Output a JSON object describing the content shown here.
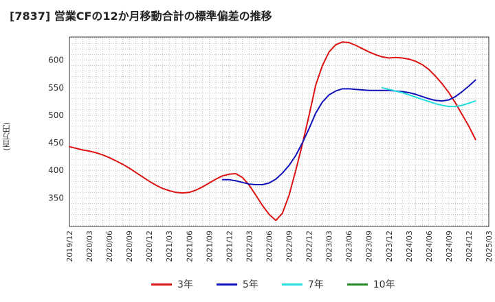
{
  "chart_data": {
    "type": "line",
    "title": "[7837]  営業CFの12か月移動合計の標準偏差の推移",
    "ylabel": "(百万円)",
    "xlabel": "",
    "ylim": [
      298,
      642
    ],
    "yticks": [
      350,
      400,
      450,
      500,
      550,
      600
    ],
    "x_ticks": [
      "2019/12",
      "2020/03",
      "2020/06",
      "2020/09",
      "2020/12",
      "2021/03",
      "2021/06",
      "2021/09",
      "2021/12",
      "2022/03",
      "2022/06",
      "2022/09",
      "2022/12",
      "2023/03",
      "2023/06",
      "2023/09",
      "2023/12",
      "2024/03",
      "2024/06",
      "2024/09",
      "2024/12",
      "2025/03"
    ],
    "grid": true,
    "legend_position": "bottom",
    "series": [
      {
        "name": "3年",
        "color": "#dd1111",
        "points": [
          [
            "2019/12",
            443
          ],
          [
            "2020/01",
            440
          ],
          [
            "2020/02",
            437
          ],
          [
            "2020/03",
            435
          ],
          [
            "2020/04",
            432
          ],
          [
            "2020/05",
            428
          ],
          [
            "2020/06",
            423
          ],
          [
            "2020/07",
            417
          ],
          [
            "2020/08",
            411
          ],
          [
            "2020/09",
            404
          ],
          [
            "2020/10",
            396
          ],
          [
            "2020/11",
            388
          ],
          [
            "2020/12",
            380
          ],
          [
            "2021/01",
            373
          ],
          [
            "2021/02",
            367
          ],
          [
            "2021/03",
            363
          ],
          [
            "2021/04",
            360
          ],
          [
            "2021/05",
            359
          ],
          [
            "2021/06",
            360
          ],
          [
            "2021/07",
            364
          ],
          [
            "2021/08",
            370
          ],
          [
            "2021/09",
            377
          ],
          [
            "2021/10",
            384
          ],
          [
            "2021/11",
            390
          ],
          [
            "2021/12",
            393
          ],
          [
            "2022/01",
            394
          ],
          [
            "2022/02",
            387
          ],
          [
            "2022/03",
            373
          ],
          [
            "2022/04",
            355
          ],
          [
            "2022/05",
            336
          ],
          [
            "2022/06",
            320
          ],
          [
            "2022/07",
            309
          ],
          [
            "2022/08",
            322
          ],
          [
            "2022/09",
            355
          ],
          [
            "2022/10",
            400
          ],
          [
            "2022/11",
            448
          ],
          [
            "2022/12",
            500
          ],
          [
            "2023/01",
            555
          ],
          [
            "2023/02",
            590
          ],
          [
            "2023/03",
            615
          ],
          [
            "2023/04",
            628
          ],
          [
            "2023/05",
            633
          ],
          [
            "2023/06",
            632
          ],
          [
            "2023/07",
            627
          ],
          [
            "2023/08",
            621
          ],
          [
            "2023/09",
            615
          ],
          [
            "2023/10",
            610
          ],
          [
            "2023/11",
            606
          ],
          [
            "2023/12",
            604
          ],
          [
            "2024/01",
            605
          ],
          [
            "2024/02",
            604
          ],
          [
            "2024/03",
            602
          ],
          [
            "2024/04",
            598
          ],
          [
            "2024/05",
            592
          ],
          [
            "2024/06",
            583
          ],
          [
            "2024/07",
            571
          ],
          [
            "2024/08",
            557
          ],
          [
            "2024/09",
            541
          ],
          [
            "2024/10",
            522
          ],
          [
            "2024/11",
            501
          ],
          [
            "2024/12",
            480
          ],
          [
            "2025/01",
            456
          ]
        ]
      },
      {
        "name": "5年",
        "color": "#1111bb",
        "points": [
          [
            "2021/11",
            383
          ],
          [
            "2021/12",
            383
          ],
          [
            "2022/01",
            381
          ],
          [
            "2022/02",
            378
          ],
          [
            "2022/03",
            375
          ],
          [
            "2022/04",
            374
          ],
          [
            "2022/05",
            374
          ],
          [
            "2022/06",
            377
          ],
          [
            "2022/07",
            384
          ],
          [
            "2022/08",
            395
          ],
          [
            "2022/09",
            409
          ],
          [
            "2022/10",
            427
          ],
          [
            "2022/11",
            450
          ],
          [
            "2022/12",
            476
          ],
          [
            "2023/01",
            504
          ],
          [
            "2023/02",
            524
          ],
          [
            "2023/03",
            537
          ],
          [
            "2023/04",
            544
          ],
          [
            "2023/05",
            548
          ],
          [
            "2023/06",
            548
          ],
          [
            "2023/07",
            547
          ],
          [
            "2023/08",
            546
          ],
          [
            "2023/09",
            545
          ],
          [
            "2023/10",
            545
          ],
          [
            "2023/11",
            545
          ],
          [
            "2023/12",
            545
          ],
          [
            "2024/01",
            544
          ],
          [
            "2024/02",
            543
          ],
          [
            "2024/03",
            541
          ],
          [
            "2024/04",
            538
          ],
          [
            "2024/05",
            534
          ],
          [
            "2024/06",
            530
          ],
          [
            "2024/07",
            527
          ],
          [
            "2024/08",
            526
          ],
          [
            "2024/09",
            528
          ],
          [
            "2024/10",
            534
          ],
          [
            "2024/11",
            543
          ],
          [
            "2024/12",
            553
          ],
          [
            "2025/01",
            564
          ]
        ]
      },
      {
        "name": "7年",
        "color": "#22dddd",
        "points": [
          [
            "2023/11",
            550
          ],
          [
            "2023/12",
            547
          ],
          [
            "2024/01",
            544
          ],
          [
            "2024/02",
            541
          ],
          [
            "2024/03",
            537
          ],
          [
            "2024/04",
            533
          ],
          [
            "2024/05",
            529
          ],
          [
            "2024/06",
            525
          ],
          [
            "2024/07",
            521
          ],
          [
            "2024/08",
            518
          ],
          [
            "2024/09",
            516
          ],
          [
            "2024/10",
            516
          ],
          [
            "2024/11",
            518
          ],
          [
            "2024/12",
            522
          ],
          [
            "2025/01",
            526
          ]
        ]
      },
      {
        "name": "10年",
        "color": "#228822",
        "points": []
      }
    ]
  }
}
